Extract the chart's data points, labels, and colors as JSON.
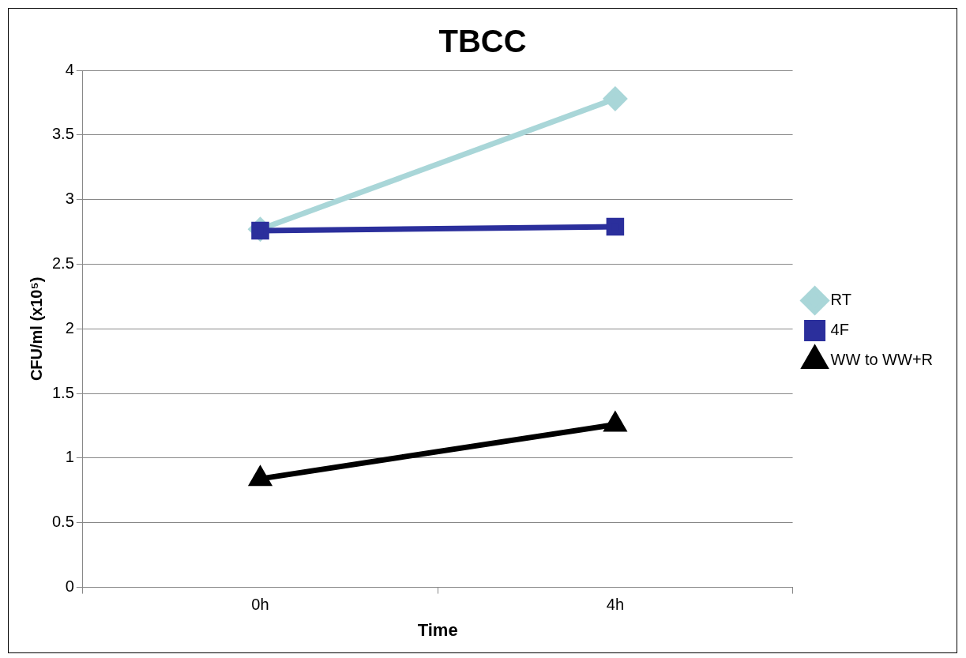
{
  "chart_data": {
    "type": "line",
    "title": "TBCC",
    "xlabel": "Time",
    "ylabel": "CFU/ml (x10⁵)",
    "categories": [
      "0h",
      "4h"
    ],
    "series": [
      {
        "name": "RT",
        "color": "#a9d6d8",
        "values": [
          2.77,
          3.78
        ],
        "marker": "diamond"
      },
      {
        "name": "4F",
        "color": "#2b2f9c",
        "values": [
          2.76,
          2.79
        ],
        "marker": "square"
      },
      {
        "name": "WW to WW+R",
        "color": "#000000",
        "values": [
          0.84,
          1.26
        ],
        "marker": "triangle"
      }
    ],
    "ylim": [
      0,
      4
    ],
    "yticks": [
      0,
      0.5,
      1,
      1.5,
      2,
      2.5,
      3,
      3.5,
      4
    ],
    "grid": "y",
    "legend": "right",
    "line_style": "solid"
  }
}
